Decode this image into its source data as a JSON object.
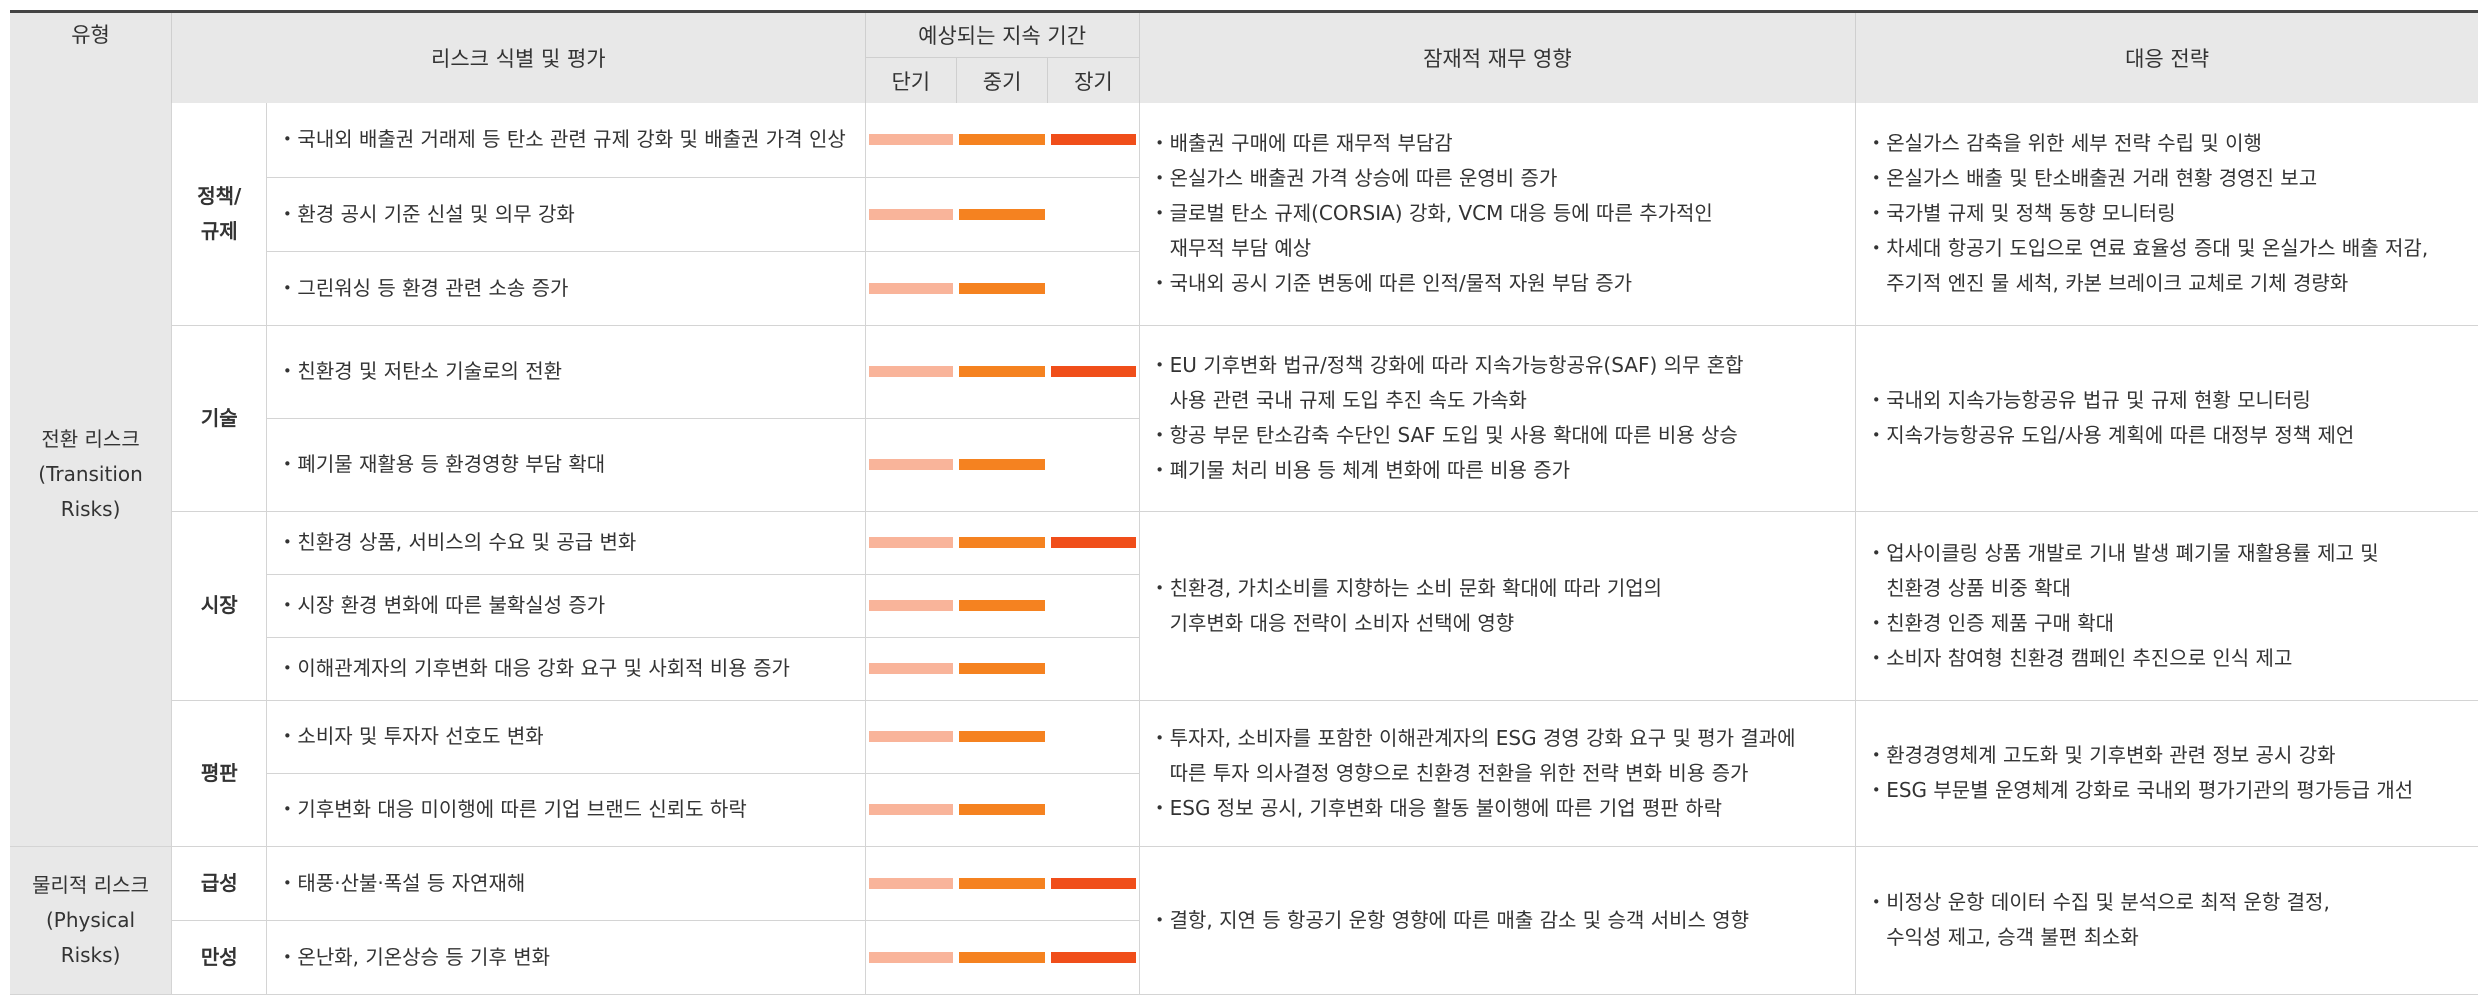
{
  "headers": {
    "type": "유형",
    "risk_id": "리스크 식별 및 평가",
    "duration": "예상되는 지속 기간",
    "short": "단기",
    "mid": "중기",
    "long": "장기",
    "financial": "잠재적 재무 영향",
    "strategy": "대응 전략"
  },
  "colors": {
    "short": "#f9b49a",
    "mid": "#f58220",
    "long": "#f04e1a"
  },
  "types": {
    "transition": [
      "전환 리스크",
      "(Transition",
      "Risks)"
    ],
    "physical": [
      "물리적 리스크",
      "(Physical",
      "Risks)"
    ]
  },
  "groups": {
    "policy": {
      "sub": [
        "정책/",
        "규제"
      ],
      "risks": [
        {
          "text": "국내외 배출권 거래제 등 탄소 관련 규제 강화 및 배출권 가격 인상",
          "short": true,
          "mid": true,
          "long": true
        },
        {
          "text": "환경 공시 기준 신설 및 의무 강화",
          "short": true,
          "mid": true,
          "long": false
        },
        {
          "text": "그린워싱 등 환경 관련 소송 증가",
          "short": true,
          "mid": true,
          "long": false
        }
      ],
      "financial": [
        "・배출권 구매에 따른 재무적 부담감",
        "・온실가스 배출권 가격 상승에 따른 운영비 증가",
        "・글로벌 탄소 규제(CORSIA) 강화, VCM 대응 등에 따른 추가적인",
        "재무적 부담 예상",
        "・국내외 공시 기준 변동에 따른 인적/물적 자원 부담 증가"
      ],
      "strategy": [
        "・온실가스 감축을 위한 세부 전략 수립 및 이행",
        "・온실가스 배출 및 탄소배출권 거래 현황 경영진 보고",
        "・국가별 규제 및 정책 동향 모니터링",
        "・차세대 항공기 도입으로 연료 효율성 증대 및 온실가스 배출 저감,",
        "주기적 엔진 물 세척, 카본 브레이크 교체로 기체 경량화"
      ]
    },
    "tech": {
      "sub": [
        "기술"
      ],
      "risks": [
        {
          "text": "친환경 및 저탄소 기술로의 전환",
          "short": true,
          "mid": true,
          "long": true
        },
        {
          "text": "폐기물 재활용 등 환경영향 부담 확대",
          "short": true,
          "mid": true,
          "long": false
        }
      ],
      "financial": [
        "・EU 기후변화 법규/정책 강화에 따라 지속가능항공유(SAF) 의무 혼합",
        "사용 관련 국내 규제 도입 추진 속도 가속화",
        "・항공 부문 탄소감축 수단인 SAF 도입 및 사용 확대에 따른 비용 상승",
        "・폐기물 처리 비용 등 체계 변화에 따른 비용 증가"
      ],
      "strategy": [
        "・국내외 지속가능항공유 법규 및 규제 현황 모니터링",
        "・지속가능항공유 도입/사용 계획에 따른 대정부 정책 제언"
      ]
    },
    "market": {
      "sub": [
        "시장"
      ],
      "risks": [
        {
          "text": "친환경 상품, 서비스의 수요 및 공급 변화",
          "short": true,
          "mid": true,
          "long": true
        },
        {
          "text": "시장 환경 변화에 따른 불확실성 증가",
          "short": true,
          "mid": true,
          "long": false
        },
        {
          "text": "이해관계자의 기후변화 대응 강화 요구 및 사회적 비용 증가",
          "short": true,
          "mid": true,
          "long": false
        }
      ],
      "financial": [
        "・친환경, 가치소비를 지향하는 소비 문화 확대에 따라 기업의",
        "기후변화 대응 전략이 소비자 선택에 영향"
      ],
      "strategy": [
        "・업사이클링 상품 개발로 기내 발생 폐기물 재활용률 제고 및",
        "친환경 상품 비중 확대",
        "・친환경 인증 제품 구매 확대",
        "・소비자 참여형 친환경 캠페인 추진으로 인식 제고"
      ]
    },
    "reputation": {
      "sub": [
        "평판"
      ],
      "risks": [
        {
          "text": "소비자 및 투자자 선호도 변화",
          "short": true,
          "mid": true,
          "long": false
        },
        {
          "text": "기후변화 대응 미이행에 따른 기업 브랜드 신뢰도 하락",
          "short": true,
          "mid": true,
          "long": false
        }
      ],
      "financial": [
        "・투자자, 소비자를 포함한 이해관계자의 ESG 경영 강화 요구 및 평가 결과에",
        "따른 투자 의사결정 영향으로 친환경 전환을 위한 전략 변화 비용 증가",
        "・ESG 정보 공시, 기후변화 대응 활동 불이행에 따른 기업 평판 하락"
      ],
      "strategy": [
        "・환경경영체계 고도화 및 기후변화 관련 정보 공시 강화",
        "・ESG 부문별 운영체계 강화로 국내외 평가기관의 평가등급 개선"
      ]
    },
    "acute": {
      "sub": [
        "급성"
      ],
      "risks": [
        {
          "text": "태풍·산불·폭설 등 자연재해",
          "short": true,
          "mid": true,
          "long": true
        }
      ]
    },
    "chronic": {
      "sub": [
        "만성"
      ],
      "risks": [
        {
          "text": "온난화, 기온상승 등 기후 변화",
          "short": true,
          "mid": true,
          "long": true
        }
      ]
    },
    "physical_shared": {
      "financial": [
        "・결항, 지연 등 항공기 운항 영향에 따른 매출 감소 및 승객 서비스 영향"
      ],
      "strategy": [
        "・비정상 운항 데이터 수집 및 분석으로 최적 운항 결정,",
        "수익성 제고, 승객 불편 최소화"
      ]
    }
  }
}
